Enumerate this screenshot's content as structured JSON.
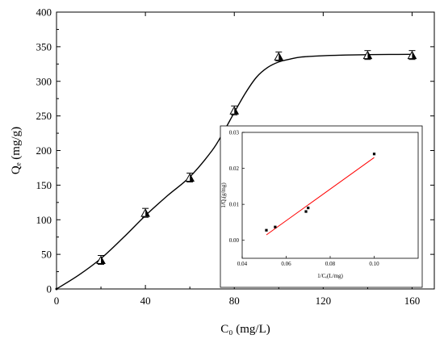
{
  "chart_data": [
    {
      "type": "scatter",
      "xlabel": "C₀ (mg/L)",
      "ylabel": "Qₑ (mg/g)",
      "xlim": [
        0,
        170
      ],
      "ylim": [
        0,
        400
      ],
      "x_ticks": [
        "0",
        "40",
        "80",
        "120",
        "160"
      ],
      "y_ticks": [
        "0",
        "50",
        "100",
        "150",
        "200",
        "250",
        "300",
        "350",
        "400"
      ],
      "series": [
        {
          "marker": "triangle-half-filled",
          "color": "#000000",
          "x": [
            0,
            20,
            40,
            60,
            80,
            100,
            140,
            160
          ],
          "y": [
            0,
            42,
            110,
            161,
            258,
            336,
            338,
            338
          ]
        }
      ],
      "fit_curve": {
        "color": "#000000",
        "x": [
          0,
          10,
          20,
          30,
          40,
          50,
          60,
          70,
          75,
          80,
          85,
          90,
          95,
          100,
          105,
          110,
          120,
          130,
          140,
          150,
          160
        ],
        "y": [
          0,
          20,
          44,
          74,
          106,
          135,
          162,
          200,
          226,
          255,
          283,
          306,
          320,
          328,
          332,
          335,
          337,
          338,
          338.5,
          338.8,
          339
        ]
      }
    },
    {
      "type": "scatter",
      "xlabel": "1/Cₑ(L/mg)",
      "ylabel": "1/Qₑ(g/mg)",
      "xlim": [
        0.04,
        0.12
      ],
      "ylim": [
        -0.005,
        0.03
      ],
      "x_ticks": [
        "0.04",
        "0.06",
        "0.08",
        "0.10"
      ],
      "y_ticks": [
        "0.00",
        "0.01",
        "0.02",
        "0.03"
      ],
      "series": [
        {
          "marker": "square",
          "color": "#000000",
          "x": [
            0.051,
            0.055,
            0.069,
            0.07,
            0.1
          ],
          "y": [
            0.0028,
            0.0037,
            0.008,
            0.009,
            0.024
          ]
        }
      ],
      "fit_line": {
        "color": "#ff0000",
        "x": [
          0.051,
          0.1
        ],
        "y": [
          0.0015,
          0.023
        ]
      }
    }
  ]
}
